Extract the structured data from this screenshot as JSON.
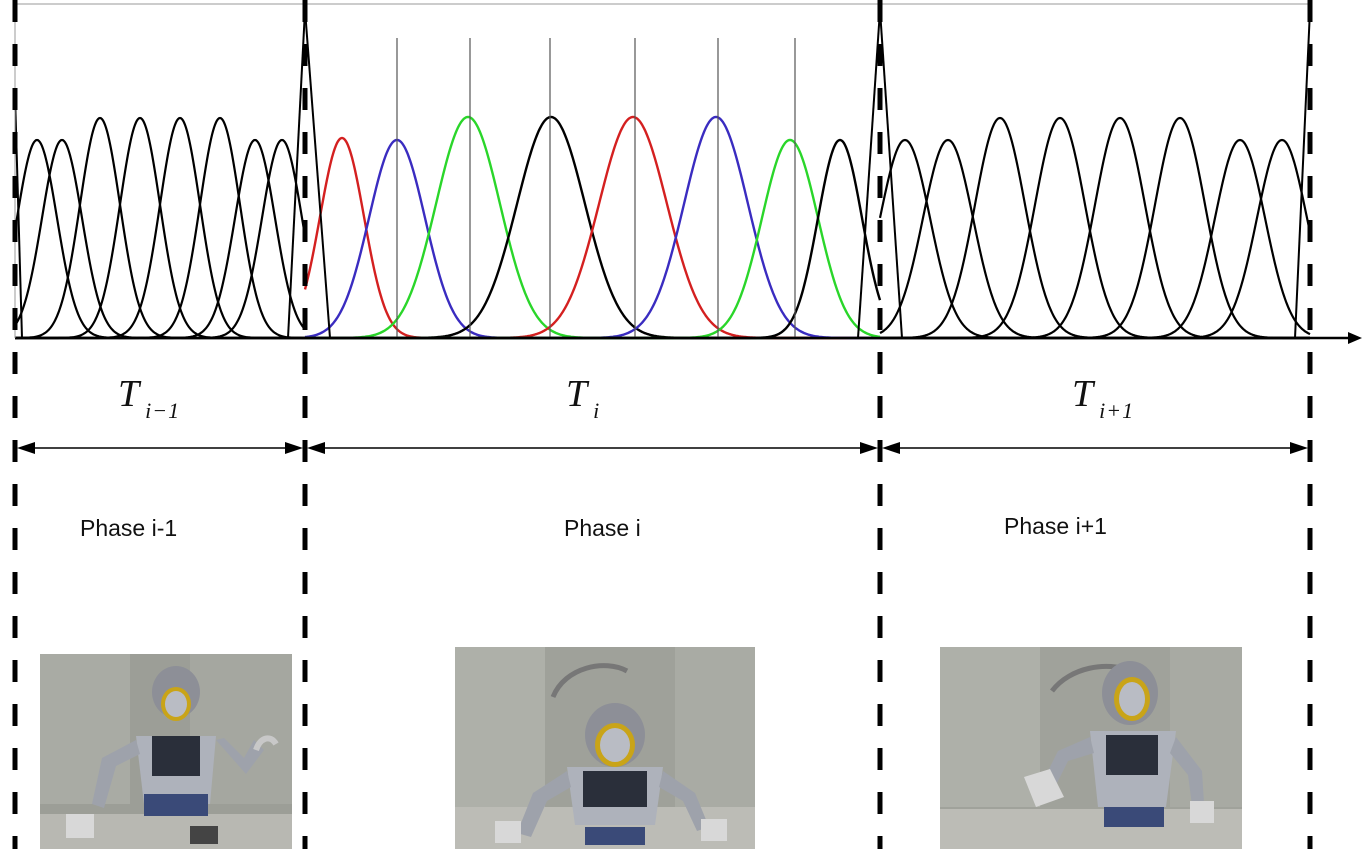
{
  "phases": [
    {
      "label": "Phase i-1",
      "duration_symbol": "T",
      "duration_subscript": "i−1"
    },
    {
      "label": "Phase i",
      "duration_symbol": "T",
      "duration_subscript": "i"
    },
    {
      "label": "Phase i+1",
      "duration_symbol": "T",
      "duration_subscript": "i+1"
    }
  ],
  "basis_functions": {
    "type": "gaussian",
    "colored_sequence": [
      "red",
      "blue",
      "green",
      "black",
      "red",
      "blue",
      "green",
      "black"
    ],
    "colors": {
      "red": "#d42020",
      "blue": "#3a2cc0",
      "green": "#2ad62a",
      "black": "#000000"
    }
  },
  "images": [
    {
      "name": "robot-phase-i-minus-1",
      "pose": "right arm raised"
    },
    {
      "name": "robot-phase-i",
      "pose": "both arms down"
    },
    {
      "name": "robot-phase-i-plus-1",
      "pose": "left hand open, reaching"
    }
  ]
}
